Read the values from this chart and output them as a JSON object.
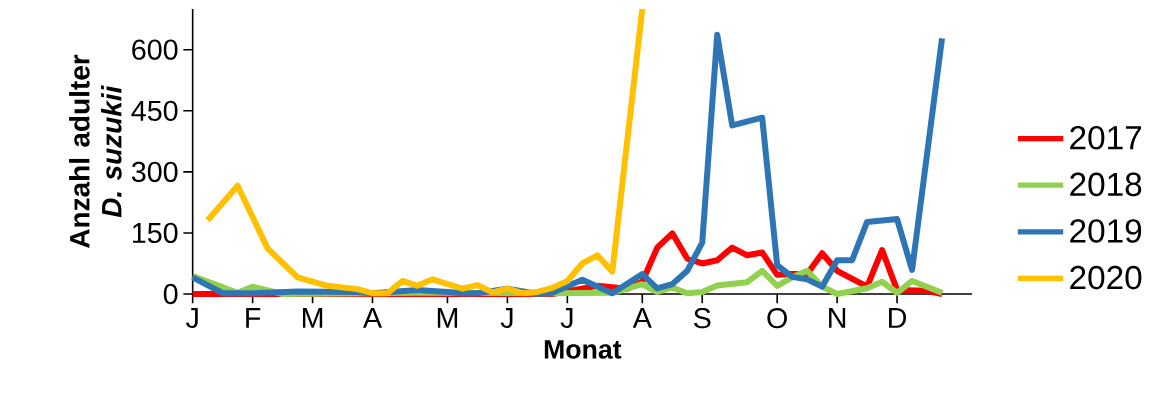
{
  "chart_data": {
    "type": "line",
    "xlabel": "Monat",
    "ylabel": "Anzahl adulter *D. suzukii*",
    "categories": [
      "J",
      null,
      null,
      null,
      "F",
      null,
      null,
      null,
      "M",
      null,
      null,
      null,
      "A",
      null,
      null,
      null,
      null,
      "M",
      null,
      null,
      null,
      "J",
      null,
      null,
      null,
      "J",
      null,
      null,
      null,
      null,
      "A",
      null,
      null,
      null,
      "S",
      null,
      null,
      null,
      null,
      "O",
      null,
      null,
      null,
      "N",
      null,
      null,
      null,
      "D",
      null,
      null,
      null,
      null,
      null
    ],
    "ylim": [
      0,
      700
    ],
    "yticks": [
      0,
      150,
      300,
      450,
      600
    ],
    "grid": false,
    "legend": "right",
    "marker": "none",
    "line_style": "solid",
    "series": [
      {
        "name": "2017",
        "color": "#ff0000",
        "values": [
          0,
          null,
          null,
          null,
          0,
          null,
          null,
          null,
          null,
          null,
          null,
          0,
          null,
          null,
          null,
          null,
          null,
          0,
          null,
          null,
          null,
          null,
          null,
          null,
          0,
          null,
          null,
          20,
          null,
          13,
          30,
          114,
          149,
          87,
          75,
          83,
          114,
          95,
          102,
          47,
          49,
          49,
          100,
          57,
          null,
          18,
          108,
          10,
          null,
          8,
          0,
          null,
          null
        ]
      },
      {
        "name": "2018",
        "color": "#92d050",
        "values": [
          44,
          null,
          null,
          3,
          18,
          null,
          0,
          null,
          null,
          null,
          null,
          null,
          null,
          null,
          null,
          3,
          null,
          null,
          null,
          null,
          null,
          null,
          null,
          null,
          2,
          null,
          null,
          null,
          3,
          null,
          24,
          5,
          16,
          2,
          5,
          21,
          null,
          29,
          57,
          20,
          41,
          57,
          18,
          0,
          null,
          14,
          30,
          3,
          32,
          null,
          3,
          null,
          null
        ]
      },
      {
        "name": "2019",
        "color": "#2e75b6",
        "values": [
          41,
          null,
          2,
          null,
          2,
          null,
          null,
          6,
          null,
          null,
          null,
          5,
          2,
          null,
          null,
          10,
          null,
          5,
          2,
          2,
          null,
          13,
          null,
          0,
          3,
          null,
          35,
          null,
          2,
          null,
          49,
          14,
          24,
          57,
          126,
          637,
          414,
          null,
          433,
          71,
          42,
          36,
          18,
          83,
          83,
          177,
          null,
          184,
          59,
          null,
          628,
          null,
          null
        ]
      },
      {
        "name": "2020",
        "color": "#ffc000",
        "values": [
          null,
          181,
          null,
          266,
          null,
          112,
          null,
          41,
          null,
          20,
          null,
          12,
          2,
          2,
          32,
          20,
          36,
          null,
          13,
          22,
          4,
          13,
          2,
          5,
          15,
          32,
          75,
          95,
          55,
          null,
          700,
          null,
          null,
          null,
          null,
          null,
          null,
          null,
          null,
          null,
          null,
          null,
          null,
          null,
          null,
          null,
          null,
          null,
          null,
          null,
          null,
          null,
          null
        ]
      }
    ]
  }
}
